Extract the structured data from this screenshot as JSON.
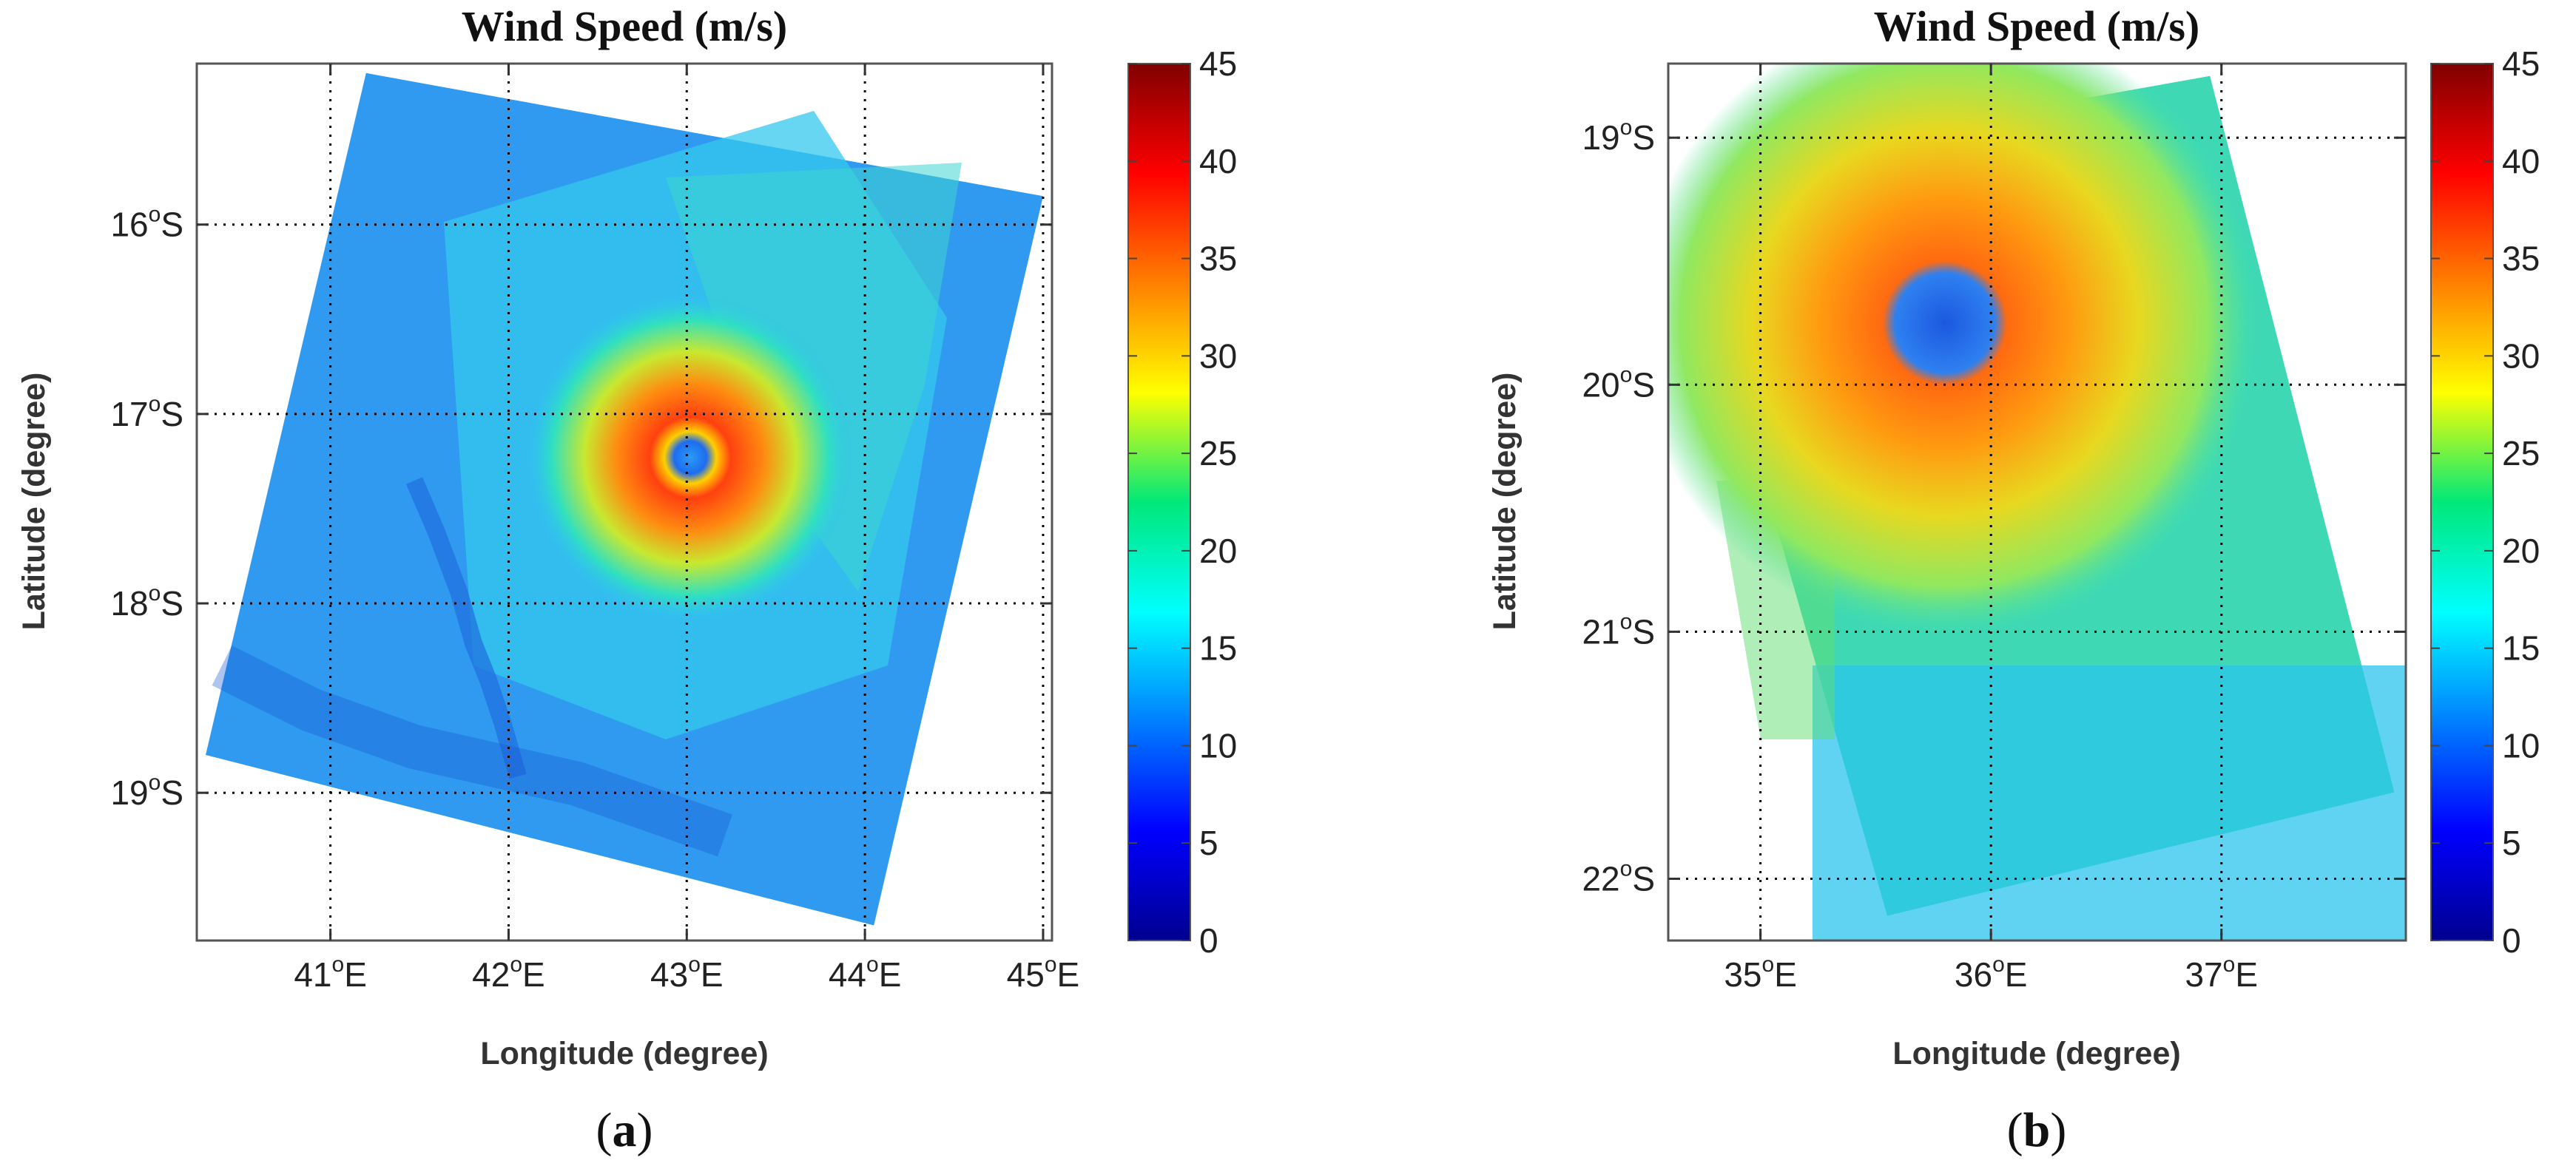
{
  "chart_data": [
    {
      "type": "heatmap",
      "panel": "a",
      "title": "Wind Speed (m/s)",
      "xlabel": "Longitude (degree)",
      "ylabel": "Latitude (degree)",
      "caption": {
        "open": "(",
        "letter": "a",
        "close": ")"
      },
      "xlim": [
        40.25,
        45.05
      ],
      "ylim": [
        -19.78,
        -15.15
      ],
      "xticks": [
        {
          "value": 41,
          "label": "41",
          "sup": "o",
          "hemi": "E"
        },
        {
          "value": 42,
          "label": "42",
          "sup": "o",
          "hemi": "E"
        },
        {
          "value": 43,
          "label": "43",
          "sup": "o",
          "hemi": "E"
        },
        {
          "value": 44,
          "label": "44",
          "sup": "o",
          "hemi": "E"
        },
        {
          "value": 45,
          "label": "45",
          "sup": "o",
          "hemi": "E"
        }
      ],
      "yticks": [
        {
          "value": -16,
          "label": "16",
          "sup": "o",
          "hemi": "S"
        },
        {
          "value": -17,
          "label": "17",
          "sup": "o",
          "hemi": "S"
        },
        {
          "value": -18,
          "label": "18",
          "sup": "o",
          "hemi": "S"
        },
        {
          "value": -19,
          "label": "19",
          "sup": "o",
          "hemi": "S"
        }
      ],
      "grid": true,
      "colorbar": {
        "min": 0,
        "max": 45,
        "ticks": [
          "0",
          "5",
          "10",
          "15",
          "20",
          "25",
          "30",
          "35",
          "40",
          "45"
        ],
        "colormap": "jet"
      },
      "swath_corners_lonlat": [
        [
          41.2,
          -15.2
        ],
        [
          45.0,
          -15.85
        ],
        [
          44.05,
          -19.7
        ],
        [
          40.3,
          -18.8
        ]
      ],
      "background_speed": 14,
      "eye": {
        "lon": 43.02,
        "lat": -17.23,
        "speed": 9
      },
      "eyewall_max_speed": 34
    },
    {
      "type": "heatmap",
      "panel": "b",
      "title": "Wind Speed (m/s)",
      "xlabel": "Longitude (degree)",
      "ylabel": "Latitude (degree)",
      "caption": {
        "open": "(",
        "letter": "b",
        "close": ")"
      },
      "xlim": [
        34.6,
        37.8
      ],
      "ylim": [
        -22.25,
        -18.7
      ],
      "xticks": [
        {
          "value": 35,
          "label": "35",
          "sup": "o",
          "hemi": "E"
        },
        {
          "value": 36,
          "label": "36",
          "sup": "o",
          "hemi": "E"
        },
        {
          "value": 37,
          "label": "37",
          "sup": "o",
          "hemi": "E"
        }
      ],
      "yticks": [
        {
          "value": -19,
          "label": "19",
          "sup": "o",
          "hemi": "S"
        },
        {
          "value": -20,
          "label": "20",
          "sup": "o",
          "hemi": "S"
        },
        {
          "value": -21,
          "label": "21",
          "sup": "o",
          "hemi": "S"
        },
        {
          "value": -22,
          "label": "22",
          "sup": "o",
          "hemi": "S"
        }
      ],
      "grid": true,
      "colorbar": {
        "min": 0,
        "max": 45,
        "ticks": [
          "0",
          "5",
          "10",
          "15",
          "20",
          "25",
          "30",
          "35",
          "40",
          "45"
        ],
        "colormap": "jet"
      },
      "swath_corners_lonlat": [
        [
          36.05,
          -18.9
        ],
        [
          36.95,
          -18.75
        ],
        [
          37.75,
          -21.65
        ],
        [
          35.55,
          -22.15
        ],
        [
          34.85,
          -19.85
        ]
      ],
      "background_speed": 19,
      "eye": {
        "lon": 35.8,
        "lat": -19.75,
        "speed": 11
      },
      "eyewall_max_speed": 30
    }
  ]
}
